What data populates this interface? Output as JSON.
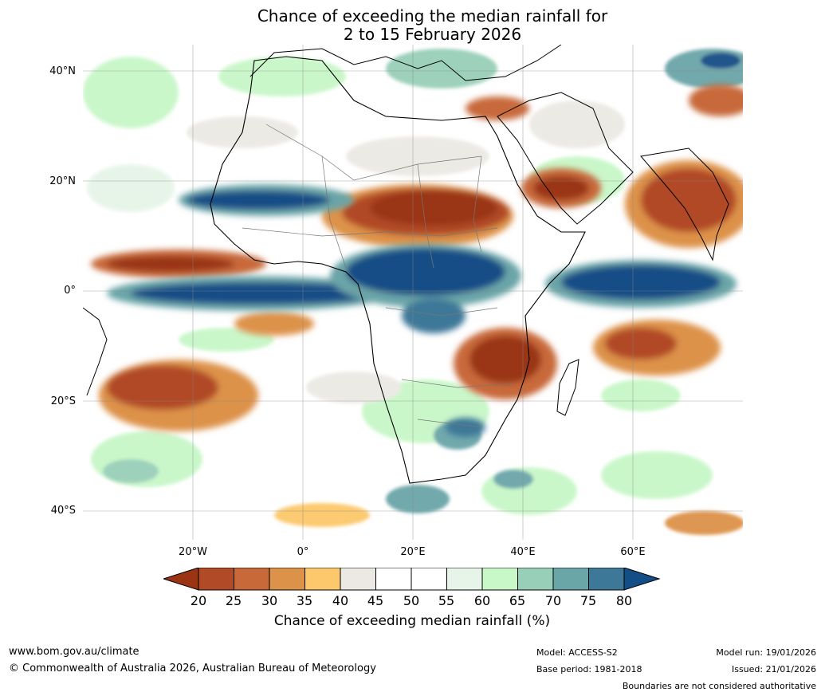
{
  "title": {
    "line1": "Chance of exceeding the median rainfall for",
    "line2": "2 to 15 February 2026"
  },
  "map": {
    "lat_labels": [
      "40°N",
      "20°N",
      "0°",
      "20°S",
      "40°S"
    ],
    "lon_labels": [
      "20°W",
      "0°",
      "20°E",
      "40°E",
      "60°E"
    ],
    "region": "Africa, Middle East and Indian Ocean"
  },
  "legend": {
    "ticks": [
      "20",
      "25",
      "30",
      "35",
      "40",
      "45",
      "50",
      "55",
      "60",
      "65",
      "70",
      "75",
      "80"
    ],
    "label": "Chance of exceeding median rainfall (%)",
    "colors": [
      "#9a3412",
      "#b14a27",
      "#c8693a",
      "#dd924a",
      "#fcc86b",
      "#ece9e4",
      "#ffffff",
      "#ffffff",
      "#e6f5e8",
      "#c8f7c8",
      "#98cfb8",
      "#6aa5a8",
      "#3e7898",
      "#134e86"
    ]
  },
  "footer": {
    "url": "www.bom.gov.au/climate",
    "copyright": "© Commonwealth of Australia 2026, Australian Bureau of Meteorology",
    "model": "Model: ACCESS-S2",
    "base_period": "Base period: 1981-2018",
    "model_run": "Model run: 19/01/2026",
    "issued": "Issued: 21/01/2026",
    "disclaimer": "Boundaries are not considered authoritative"
  }
}
